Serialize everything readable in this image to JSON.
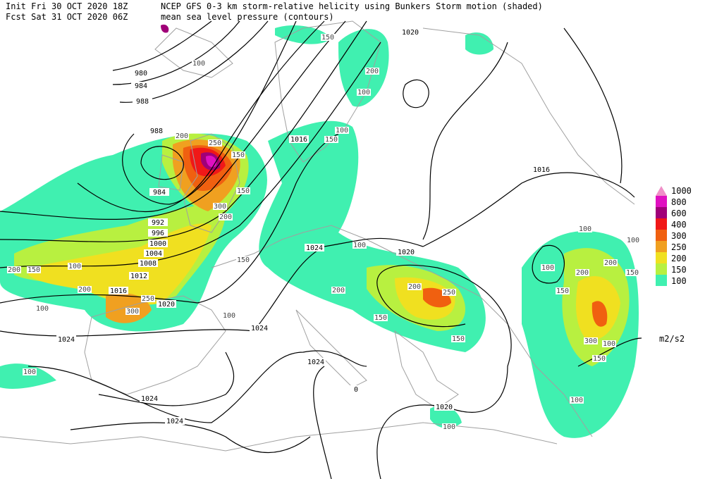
{
  "header": {
    "init": "Init  Fri 30 OCT 2020 18Z",
    "fcst": "Fcst Sat 31 OCT 2020 06Z",
    "title": "NCEP GFS 0-3 km storm-relative helicity using Bunkers Storm motion (shaded)",
    "subtitle": "mean sea level pressure (contours)"
  },
  "legend": {
    "levels": [
      {
        "label": "1000",
        "color": "#f090c8"
      },
      {
        "label": "800",
        "color": "#e010c0"
      },
      {
        "label": "600",
        "color": "#a00078"
      },
      {
        "label": "400",
        "color": "#f01818"
      },
      {
        "label": "300",
        "color": "#f06010"
      },
      {
        "label": "250",
        "color": "#f0a020"
      },
      {
        "label": "200",
        "color": "#f0e020"
      },
      {
        "label": "150",
        "color": "#b8f040"
      },
      {
        "label": "100",
        "color": "#40f0b0"
      }
    ],
    "unit": "m2/s2"
  },
  "isobar_labels": [
    "1020",
    "980",
    "984",
    "988",
    "988",
    "1016",
    "1016",
    "984",
    "992",
    "996",
    "1000",
    "1004",
    "1008",
    "1012",
    "1016",
    "1020",
    "1024",
    "1020",
    "1024",
    "1024",
    "1024",
    "1024",
    "1024",
    "1020",
    "0"
  ],
  "helicity_labels": [
    "150",
    "100",
    "200",
    "100",
    "150",
    "100",
    "200",
    "250",
    "150",
    "150",
    "300",
    "200",
    "100",
    "150",
    "200",
    "150",
    "100",
    "200",
    "250",
    "300",
    "100",
    "100",
    "200",
    "200",
    "250",
    "150",
    "150",
    "100",
    "200",
    "150",
    "300",
    "150",
    "100",
    "100",
    "100",
    "100",
    "150",
    "100",
    "100",
    "200"
  ]
}
